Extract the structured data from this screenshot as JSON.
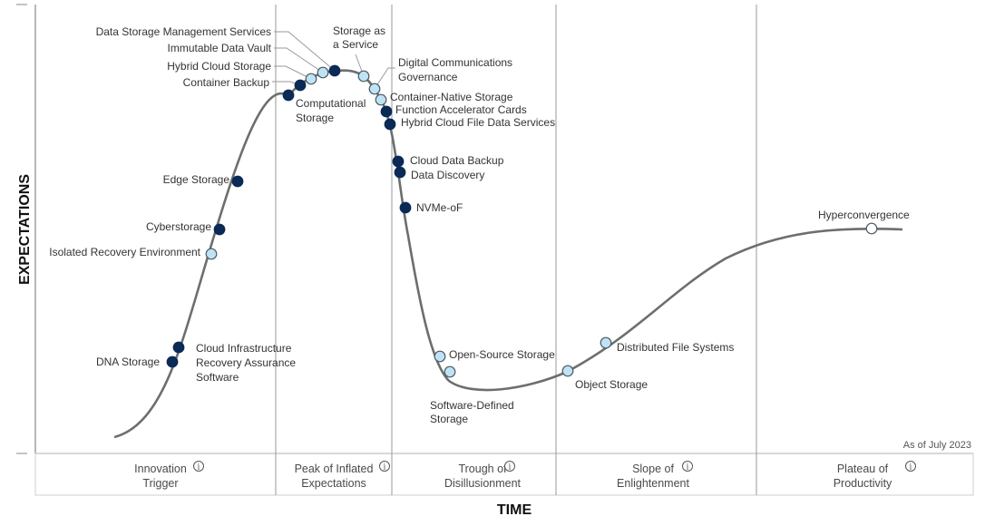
{
  "chart_data": {
    "type": "line",
    "title": "",
    "xlabel": "TIME",
    "ylabel": "EXPECTATIONS",
    "as_of": "As of July 2023",
    "phases": [
      {
        "line1": "Innovation",
        "line2": "Trigger"
      },
      {
        "line1": "Peak of Inflated",
        "line2": "Expectations"
      },
      {
        "line1": "Trough of",
        "line2": "Disillusionment"
      },
      {
        "line1": "Slope of",
        "line2": "Enlightenment"
      },
      {
        "line1": "Plateau of",
        "line2": "Productivity"
      }
    ],
    "phase_info_icon": "info-circle-icon",
    "colors": {
      "curve": "#6b6f6e",
      "dot_dark": "#0b2a55",
      "dot_light": "#bfe3f4",
      "dot_white": "#ffffff",
      "dot_stroke": "#4a5a66",
      "phase_divider": "#9a9a9a"
    },
    "points": [
      {
        "name": "DNA Storage",
        "phase": 0,
        "marker": "dark"
      },
      {
        "name": "Cloud Infrastructure Recovery Assurance Software",
        "phase": 0,
        "marker": "dark"
      },
      {
        "name": "Isolated Recovery Environment",
        "phase": 0,
        "marker": "light"
      },
      {
        "name": "Cyberstorage",
        "phase": 0,
        "marker": "dark"
      },
      {
        "name": "Edge Storage",
        "phase": 0,
        "marker": "dark"
      },
      {
        "name": "Computational Storage",
        "phase": 1,
        "marker": "dark"
      },
      {
        "name": "Container Backup",
        "phase": 1,
        "marker": "dark"
      },
      {
        "name": "Hybrid Cloud Storage",
        "phase": 1,
        "marker": "light"
      },
      {
        "name": "Immutable Data Vault",
        "phase": 1,
        "marker": "light"
      },
      {
        "name": "Data Storage Management Services",
        "phase": 1,
        "marker": "dark"
      },
      {
        "name": "Storage as a Service",
        "phase": 1,
        "marker": "light"
      },
      {
        "name": "Digital Communications Governance",
        "phase": 1,
        "marker": "light"
      },
      {
        "name": "Container-Native Storage",
        "phase": 1,
        "marker": "light"
      },
      {
        "name": "Function Accelerator Cards",
        "phase": 1,
        "marker": "dark"
      },
      {
        "name": "Hybrid Cloud File Data Services",
        "phase": 1,
        "marker": "dark"
      },
      {
        "name": "Cloud Data Backup",
        "phase": 2,
        "marker": "dark"
      },
      {
        "name": "Data Discovery",
        "phase": 2,
        "marker": "dark"
      },
      {
        "name": "NVMe-oF",
        "phase": 2,
        "marker": "dark"
      },
      {
        "name": "Open-Source Storage",
        "phase": 2,
        "marker": "light"
      },
      {
        "name": "Software-Defined Storage",
        "phase": 2,
        "marker": "light"
      },
      {
        "name": "Object Storage",
        "phase": 3,
        "marker": "light"
      },
      {
        "name": "Distributed File Systems",
        "phase": 3,
        "marker": "light"
      },
      {
        "name": "Hyperconvergence",
        "phase": 4,
        "marker": "white"
      }
    ]
  }
}
